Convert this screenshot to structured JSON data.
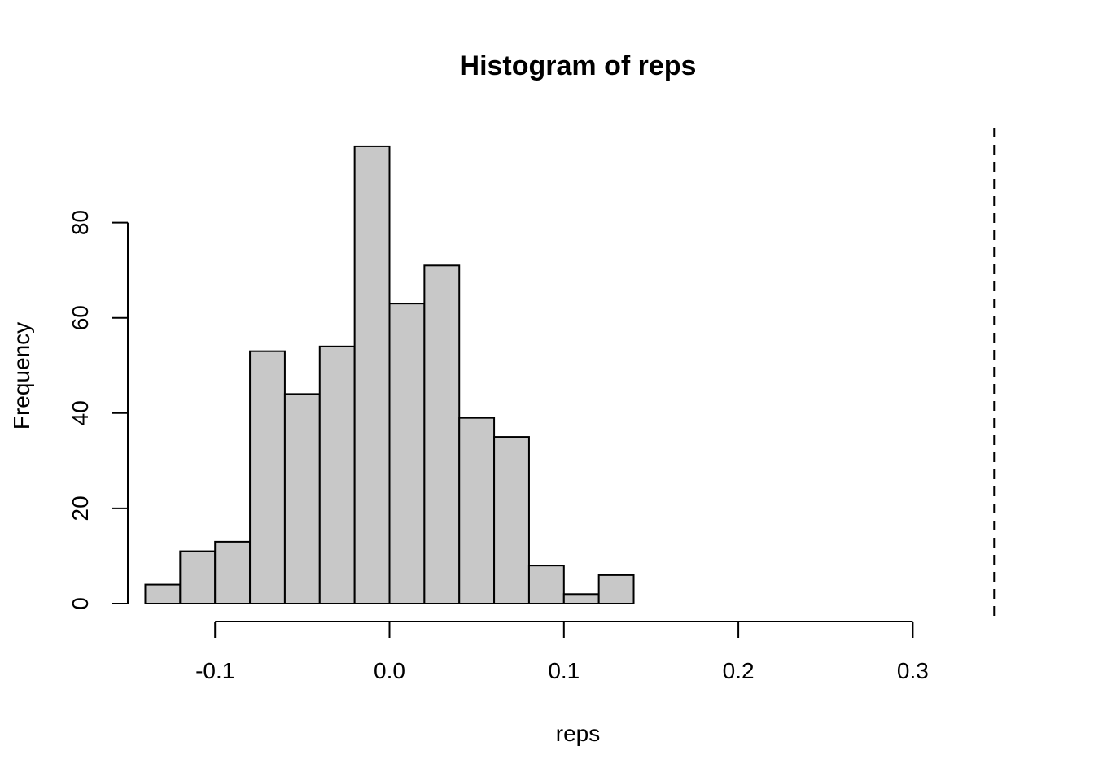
{
  "chart_data": {
    "type": "bar",
    "title": "Histogram of reps",
    "xlabel": "reps",
    "ylabel": "Frequency",
    "bin_edges": [
      -0.14,
      -0.12,
      -0.1,
      -0.08,
      -0.06,
      -0.04,
      -0.02,
      0.0,
      0.02,
      0.04,
      0.06,
      0.08,
      0.1,
      0.12,
      0.14
    ],
    "values": [
      4,
      11,
      13,
      53,
      44,
      54,
      96,
      63,
      71,
      39,
      35,
      8,
      2,
      6
    ],
    "bar_color": "#c8c8c8",
    "x_ticks": [
      -0.1,
      0.0,
      0.1,
      0.2,
      0.3
    ],
    "x_tick_labels": [
      "-0.1",
      "0.0",
      "0.1",
      "0.2",
      "0.3"
    ],
    "y_ticks": [
      0,
      20,
      40,
      60,
      80
    ],
    "y_tick_labels": [
      "0",
      "20",
      "40",
      "60",
      "80"
    ],
    "reference_line": {
      "x": 0.3466,
      "style": "dashed"
    },
    "grid": false
  }
}
